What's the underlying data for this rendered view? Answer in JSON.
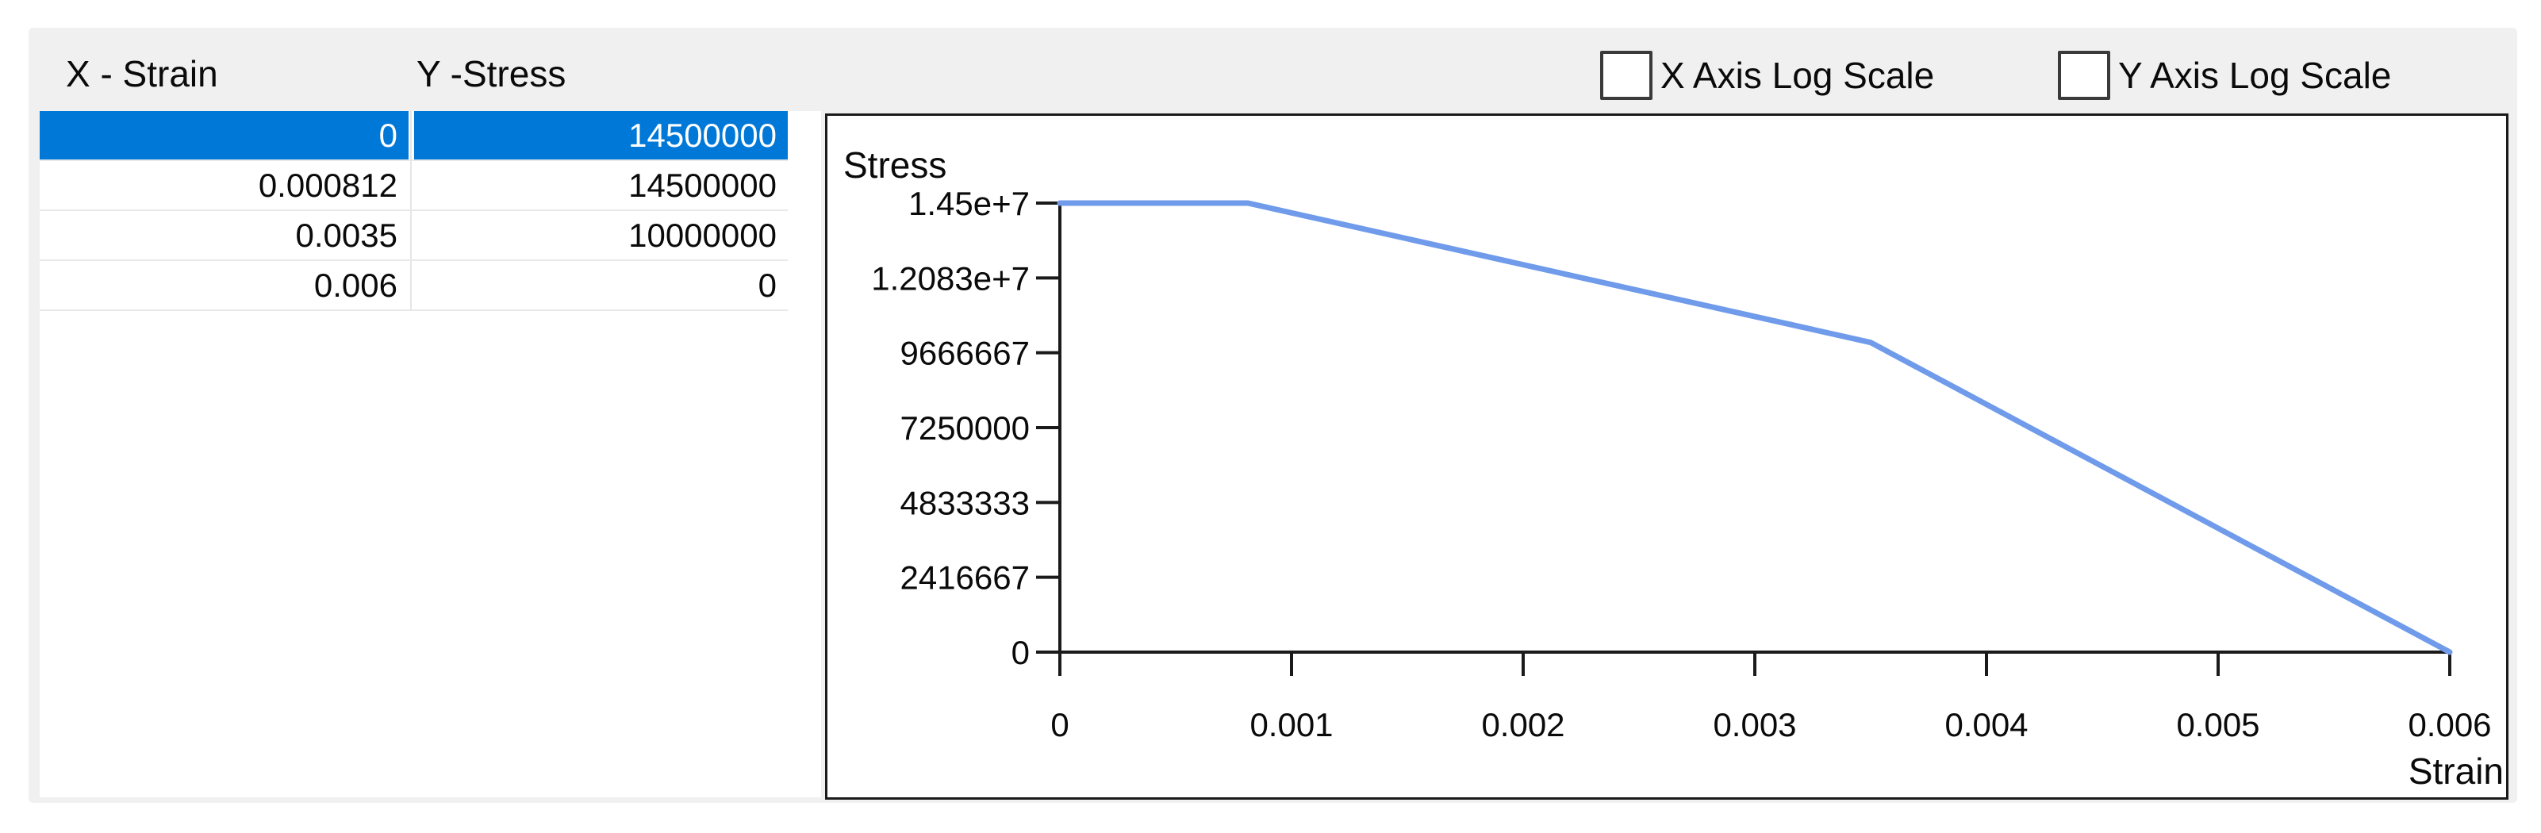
{
  "table": {
    "headers": {
      "x": "X - Strain",
      "y": "Y -Stress"
    },
    "rows": [
      {
        "x": "0",
        "y": "14500000",
        "selected": true
      },
      {
        "x": "0.000812",
        "y": "14500000",
        "selected": false
      },
      {
        "x": "0.0035",
        "y": "10000000",
        "selected": false
      },
      {
        "x": "0.006",
        "y": "0",
        "selected": false
      }
    ]
  },
  "controls": {
    "x_log": {
      "label": "X Axis Log Scale",
      "checked": false
    },
    "y_log": {
      "label": "Y Axis Log Scale",
      "checked": false
    }
  },
  "chart_data": {
    "type": "line",
    "title": "",
    "xlabel": "Strain",
    "ylabel": "Stress",
    "x": [
      0,
      0.000812,
      0.0035,
      0.006
    ],
    "y": [
      14500000,
      14500000,
      10000000,
      0
    ],
    "xlim": [
      0,
      0.006
    ],
    "ylim": [
      0,
      14500000
    ],
    "x_ticks": [
      {
        "value": 0,
        "label": "0"
      },
      {
        "value": 0.001,
        "label": "0.001"
      },
      {
        "value": 0.002,
        "label": "0.002"
      },
      {
        "value": 0.003,
        "label": "0.003"
      },
      {
        "value": 0.004,
        "label": "0.004"
      },
      {
        "value": 0.005,
        "label": "0.005"
      },
      {
        "value": 0.006,
        "label": "0.006"
      }
    ],
    "y_ticks": [
      {
        "value": 14500000,
        "label": "1.45e+7"
      },
      {
        "value": 12083333,
        "label": "1.2083e+7"
      },
      {
        "value": 9666667,
        "label": "9666667"
      },
      {
        "value": 7250000,
        "label": "7250000"
      },
      {
        "value": 4833333,
        "label": "4833333"
      },
      {
        "value": 2416667,
        "label": "2416667"
      },
      {
        "value": 0,
        "label": "0"
      }
    ],
    "grid": false,
    "legend": null,
    "line_color": "#6f9bea",
    "axis_color": "#1a1a1a"
  },
  "colors": {
    "selection_blue": "#0078d7",
    "panel_gray": "#f0f0f0",
    "curve_blue": "#6f9bea"
  }
}
